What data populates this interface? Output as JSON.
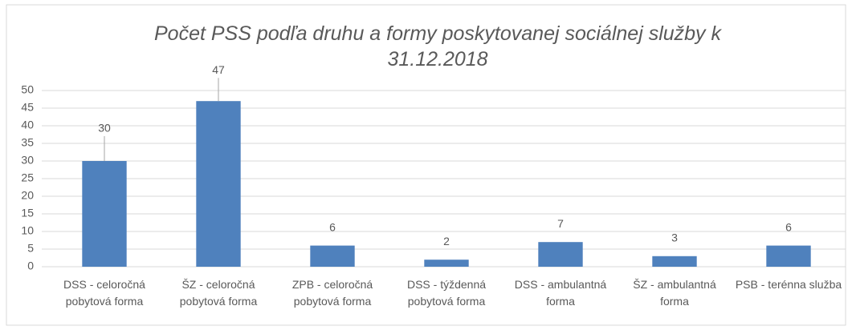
{
  "chart_data": {
    "type": "bar",
    "title": "Počet PSS podľa druhu a formy poskytovanej sociálnej služby k 31.12.2018",
    "categories": [
      "DSS - celoročná pobytová forma",
      "ŠZ - celoročná pobytová forma",
      "ZPB - celoročná pobytová forma",
      "DSS - týždenná pobytová forma",
      "DSS - ambulantná forma",
      "ŠZ - ambulantná forma",
      "PSB - terénna služba"
    ],
    "values": [
      30,
      47,
      6,
      2,
      7,
      3,
      6
    ],
    "color": "#4f81bd",
    "ylim": [
      0,
      50
    ],
    "yticks": [
      0,
      5,
      10,
      15,
      20,
      25,
      30,
      35,
      40,
      45,
      50
    ],
    "grid": true
  }
}
